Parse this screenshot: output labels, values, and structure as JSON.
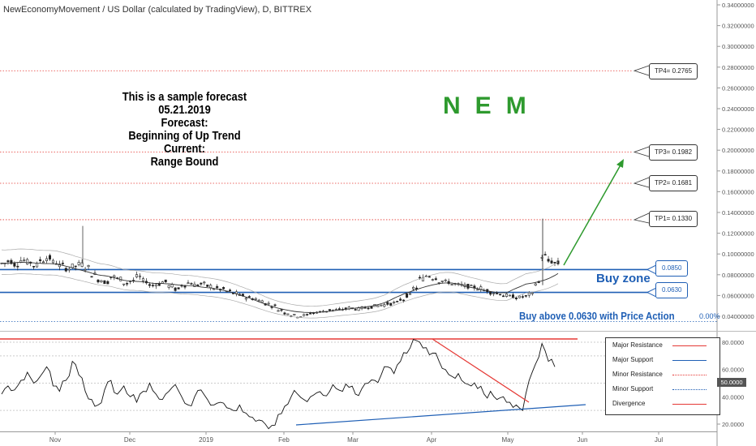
{
  "symbol_title": "NewEconomyMovement / US Dollar (calculated by TradingView), D, BITTREX",
  "forecast_lines": [
    "This is a sample forecast",
    "05.21.2019",
    "Forecast:",
    "Beginning of Up Trend",
    "Current:",
    "Range Bound"
  ],
  "ticker_letters": [
    "N",
    "E",
    "M"
  ],
  "buy_zone_label": "Buy zone",
  "buy_above_label": "Buy above 0.0630 with Price Action",
  "percent_label": "0.00%",
  "targets": [
    {
      "label": "TP4= 0.2765",
      "value": 0.2765
    },
    {
      "label": "TP3= 0.1982",
      "value": 0.1982
    },
    {
      "label": "TP2= 0.1681",
      "value": 0.1681
    },
    {
      "label": "TP1= 0.1330",
      "value": 0.133
    }
  ],
  "zone_levels": [
    {
      "label": "0.0850",
      "value": 0.085
    },
    {
      "label": "0.0630",
      "value": 0.063
    }
  ],
  "legend": [
    {
      "label": "Major Resistance",
      "color": "#e53935",
      "style": "solid"
    },
    {
      "label": "Major Support",
      "color": "#1f5fb5",
      "style": "solid"
    },
    {
      "label": "Minor Resistance",
      "color": "#e53935",
      "style": "dotted"
    },
    {
      "label": "Minor Support",
      "color": "#1f5fb5",
      "style": "dotted"
    },
    {
      "label": "Divergence",
      "color": "#e53935",
      "style": "solid"
    }
  ],
  "colors": {
    "zone": "#1f5fb5",
    "resistance": "#e53935",
    "arrow": "#2e9a2e",
    "ticker": "#2e9a2e",
    "candle": "#222222"
  },
  "chart_data": {
    "type": "candlestick",
    "price_axis": {
      "ylim": [
        0.03,
        0.345
      ],
      "ticks": [
        "0.34000000",
        "0.32000000",
        "0.30000000",
        "0.28000000",
        "0.26000000",
        "0.24000000",
        "0.22000000",
        "0.20000000",
        "0.18000000",
        "0.16000000",
        "0.14000000",
        "0.12000000",
        "0.10000000",
        "0.08000000",
        "0.06000000",
        "0.04000000"
      ],
      "tick_values": [
        0.34,
        0.32,
        0.3,
        0.28,
        0.26,
        0.24,
        0.22,
        0.2,
        0.18,
        0.16,
        0.14,
        0.12,
        0.1,
        0.08,
        0.06,
        0.04
      ]
    },
    "x_axis": {
      "labels": [
        "Nov",
        "Dec",
        "2019",
        "Feb",
        "Mar",
        "Apr",
        "May",
        "Jun",
        "Jul"
      ]
    },
    "price_path": [
      0.091,
      0.093,
      0.09,
      0.094,
      0.092,
      0.089,
      0.094,
      0.096,
      0.092,
      0.089,
      0.086,
      0.088,
      0.09,
      0.087,
      0.08,
      0.075,
      0.073,
      0.078,
      0.076,
      0.072,
      0.074,
      0.078,
      0.074,
      0.07,
      0.071,
      0.073,
      0.069,
      0.066,
      0.07,
      0.072,
      0.07,
      0.071,
      0.069,
      0.067,
      0.066,
      0.064,
      0.062,
      0.06,
      0.058,
      0.057,
      0.055,
      0.052,
      0.05,
      0.046,
      0.043,
      0.041,
      0.04,
      0.041,
      0.043,
      0.044,
      0.045,
      0.046,
      0.046,
      0.047,
      0.048,
      0.047,
      0.048,
      0.049,
      0.05,
      0.051,
      0.052,
      0.053,
      0.056,
      0.06,
      0.067,
      0.076,
      0.079,
      0.077,
      0.074,
      0.073,
      0.071,
      0.07,
      0.069,
      0.068,
      0.067,
      0.065,
      0.063,
      0.062,
      0.06,
      0.059,
      0.058,
      0.059,
      0.061,
      0.072,
      0.098,
      0.093,
      0.091
    ],
    "rsi": {
      "ylim": [
        15,
        85
      ],
      "ticks": [
        "80.0000",
        "60.0000",
        "40.0000",
        "20.0000"
      ],
      "tick_values": [
        80,
        60,
        40,
        20
      ],
      "current_label": "50.0000",
      "path": [
        42,
        48,
        45,
        52,
        58,
        50,
        55,
        62,
        48,
        44,
        52,
        66,
        56,
        44,
        38,
        34,
        45,
        52,
        42,
        48,
        40,
        36,
        44,
        50,
        42,
        38,
        44,
        49,
        40,
        34,
        40,
        45,
        38,
        34,
        36,
        32,
        30,
        34,
        28,
        25,
        23,
        20,
        19,
        27,
        33,
        40,
        42,
        38,
        40,
        43,
        41,
        44,
        46,
        44,
        47,
        42,
        46,
        50,
        52,
        56,
        62,
        57,
        66,
        72,
        82,
        80,
        76,
        72,
        66,
        60,
        55,
        57,
        50,
        48,
        46,
        42,
        44,
        38,
        40,
        36,
        34,
        30,
        52,
        64,
        79,
        66,
        62
      ]
    }
  }
}
